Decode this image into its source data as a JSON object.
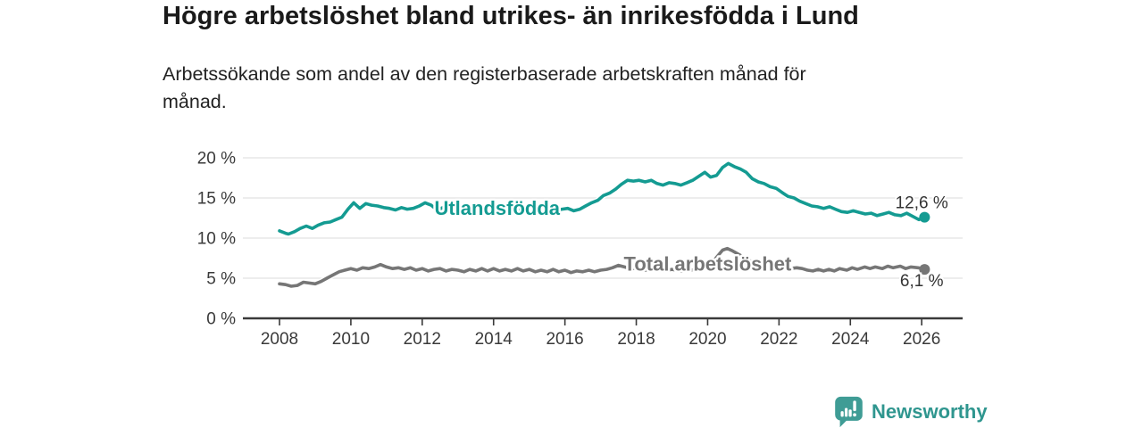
{
  "chart_data": {
    "type": "line",
    "title": "Högre arbetslöshet bland utrikes- än inrikesfödda i Lund",
    "subtitle": "Arbetssökande som andel av den registerbaserade arbetskraften månad för månad.",
    "subtitle_line1": "Arbetssökande som andel av den registerbaserade arbetskraften månad för",
    "subtitle_line2": "månad.",
    "xlabel": "",
    "ylabel": "",
    "xlim": [
      2007.0,
      2027.15
    ],
    "ylim": [
      0,
      20
    ],
    "xticks": [
      2008,
      2010,
      2012,
      2014,
      2016,
      2018,
      2020,
      2022,
      2024,
      2026
    ],
    "yticks": [
      0,
      5,
      10,
      15,
      20
    ],
    "ytick_suffix": " %",
    "grid": true,
    "legend_position": "inline-labels",
    "axis_text_color": "#3a3a3a",
    "grid_color": "#e2e2e2",
    "series": [
      {
        "name": "Utlandsfödda",
        "color": "#149b92",
        "end_value": 12.6,
        "end_label": "12,6 %",
        "label_pos": {
          "x": 2014.1,
          "y": 12.9
        },
        "end_label_pos": {
          "x": 2026.0,
          "y": 13.75
        },
        "points": [
          [
            2008.0,
            10.9
          ],
          [
            2008.17,
            10.6
          ],
          [
            2008.25,
            10.5
          ],
          [
            2008.42,
            10.8
          ],
          [
            2008.58,
            11.2
          ],
          [
            2008.75,
            11.5
          ],
          [
            2008.92,
            11.2
          ],
          [
            2009.08,
            11.6
          ],
          [
            2009.25,
            11.9
          ],
          [
            2009.42,
            12.0
          ],
          [
            2009.58,
            12.3
          ],
          [
            2009.75,
            12.6
          ],
          [
            2009.92,
            13.6
          ],
          [
            2010.08,
            14.4
          ],
          [
            2010.25,
            13.7
          ],
          [
            2010.42,
            14.3
          ],
          [
            2010.58,
            14.1
          ],
          [
            2010.75,
            14.0
          ],
          [
            2010.92,
            13.8
          ],
          [
            2011.08,
            13.7
          ],
          [
            2011.25,
            13.5
          ],
          [
            2011.42,
            13.8
          ],
          [
            2011.58,
            13.6
          ],
          [
            2011.75,
            13.7
          ],
          [
            2011.92,
            14.0
          ],
          [
            2012.08,
            14.4
          ],
          [
            2012.25,
            14.1
          ],
          [
            2012.42,
            13.5
          ],
          [
            2012.58,
            13.8
          ],
          [
            2012.75,
            14.0
          ],
          [
            2012.92,
            13.7
          ],
          [
            2013.08,
            13.9
          ],
          [
            2013.25,
            13.6
          ],
          [
            2013.42,
            13.8
          ],
          [
            2013.58,
            13.5
          ],
          [
            2013.75,
            13.7
          ],
          [
            2013.92,
            13.4
          ],
          [
            2014.08,
            13.7
          ],
          [
            2014.25,
            13.4
          ],
          [
            2014.42,
            13.6
          ],
          [
            2014.58,
            13.3
          ],
          [
            2014.75,
            13.6
          ],
          [
            2014.92,
            13.3
          ],
          [
            2015.08,
            13.6
          ],
          [
            2015.25,
            13.3
          ],
          [
            2015.42,
            13.5
          ],
          [
            2015.58,
            13.2
          ],
          [
            2015.75,
            13.5
          ],
          [
            2015.92,
            13.6
          ],
          [
            2016.08,
            13.7
          ],
          [
            2016.25,
            13.4
          ],
          [
            2016.42,
            13.6
          ],
          [
            2016.58,
            14.0
          ],
          [
            2016.75,
            14.4
          ],
          [
            2016.92,
            14.7
          ],
          [
            2017.08,
            15.3
          ],
          [
            2017.25,
            15.6
          ],
          [
            2017.42,
            16.1
          ],
          [
            2017.58,
            16.7
          ],
          [
            2017.75,
            17.2
          ],
          [
            2017.92,
            17.1
          ],
          [
            2018.08,
            17.2
          ],
          [
            2018.25,
            17.0
          ],
          [
            2018.42,
            17.2
          ],
          [
            2018.58,
            16.8
          ],
          [
            2018.75,
            16.6
          ],
          [
            2018.92,
            16.9
          ],
          [
            2019.08,
            16.8
          ],
          [
            2019.25,
            16.6
          ],
          [
            2019.42,
            16.9
          ],
          [
            2019.58,
            17.2
          ],
          [
            2019.75,
            17.7
          ],
          [
            2019.92,
            18.2
          ],
          [
            2020.08,
            17.6
          ],
          [
            2020.25,
            17.8
          ],
          [
            2020.42,
            18.8
          ],
          [
            2020.58,
            19.3
          ],
          [
            2020.75,
            18.9
          ],
          [
            2020.92,
            18.6
          ],
          [
            2021.08,
            18.2
          ],
          [
            2021.25,
            17.4
          ],
          [
            2021.42,
            17.0
          ],
          [
            2021.58,
            16.8
          ],
          [
            2021.75,
            16.4
          ],
          [
            2021.92,
            16.2
          ],
          [
            2022.08,
            15.7
          ],
          [
            2022.25,
            15.2
          ],
          [
            2022.42,
            15.0
          ],
          [
            2022.58,
            14.6
          ],
          [
            2022.75,
            14.3
          ],
          [
            2022.92,
            14.0
          ],
          [
            2023.08,
            13.9
          ],
          [
            2023.25,
            13.7
          ],
          [
            2023.42,
            13.9
          ],
          [
            2023.58,
            13.6
          ],
          [
            2023.75,
            13.3
          ],
          [
            2023.92,
            13.2
          ],
          [
            2024.08,
            13.4
          ],
          [
            2024.25,
            13.2
          ],
          [
            2024.42,
            13.0
          ],
          [
            2024.58,
            13.1
          ],
          [
            2024.75,
            12.8
          ],
          [
            2024.92,
            13.0
          ],
          [
            2025.08,
            13.2
          ],
          [
            2025.25,
            12.9
          ],
          [
            2025.42,
            12.8
          ],
          [
            2025.58,
            13.1
          ],
          [
            2025.75,
            12.7
          ],
          [
            2025.92,
            12.3
          ],
          [
            2026.08,
            12.6
          ]
        ]
      },
      {
        "name": "Total arbetslöshet",
        "color": "#767676",
        "end_value": 6.1,
        "end_label": "6,1 %",
        "label_pos": {
          "x": 2020.0,
          "y": 5.95
        },
        "end_label_pos": {
          "x": 2026.0,
          "y": 4.0
        },
        "points": [
          [
            2008.0,
            4.3
          ],
          [
            2008.17,
            4.2
          ],
          [
            2008.33,
            4.0
          ],
          [
            2008.5,
            4.1
          ],
          [
            2008.67,
            4.5
          ],
          [
            2008.83,
            4.4
          ],
          [
            2009.0,
            4.3
          ],
          [
            2009.17,
            4.6
          ],
          [
            2009.33,
            5.0
          ],
          [
            2009.5,
            5.4
          ],
          [
            2009.67,
            5.8
          ],
          [
            2009.83,
            6.0
          ],
          [
            2010.0,
            6.2
          ],
          [
            2010.17,
            6.0
          ],
          [
            2010.33,
            6.3
          ],
          [
            2010.5,
            6.2
          ],
          [
            2010.67,
            6.4
          ],
          [
            2010.83,
            6.7
          ],
          [
            2011.0,
            6.4
          ],
          [
            2011.17,
            6.2
          ],
          [
            2011.33,
            6.3
          ],
          [
            2011.5,
            6.1
          ],
          [
            2011.67,
            6.3
          ],
          [
            2011.83,
            6.0
          ],
          [
            2012.0,
            6.2
          ],
          [
            2012.17,
            5.9
          ],
          [
            2012.33,
            6.1
          ],
          [
            2012.5,
            6.2
          ],
          [
            2012.67,
            5.9
          ],
          [
            2012.83,
            6.1
          ],
          [
            2013.0,
            6.0
          ],
          [
            2013.17,
            5.8
          ],
          [
            2013.33,
            6.1
          ],
          [
            2013.5,
            5.9
          ],
          [
            2013.67,
            6.2
          ],
          [
            2013.83,
            5.9
          ],
          [
            2014.0,
            6.2
          ],
          [
            2014.17,
            5.9
          ],
          [
            2014.33,
            6.1
          ],
          [
            2014.5,
            5.9
          ],
          [
            2014.67,
            6.2
          ],
          [
            2014.83,
            5.9
          ],
          [
            2015.0,
            6.1
          ],
          [
            2015.17,
            5.8
          ],
          [
            2015.33,
            6.0
          ],
          [
            2015.5,
            5.8
          ],
          [
            2015.67,
            6.1
          ],
          [
            2015.83,
            5.8
          ],
          [
            2016.0,
            6.0
          ],
          [
            2016.17,
            5.7
          ],
          [
            2016.33,
            5.9
          ],
          [
            2016.5,
            5.8
          ],
          [
            2016.67,
            6.0
          ],
          [
            2016.83,
            5.8
          ],
          [
            2017.0,
            6.0
          ],
          [
            2017.17,
            6.1
          ],
          [
            2017.33,
            6.3
          ],
          [
            2017.5,
            6.6
          ],
          [
            2017.67,
            6.4
          ],
          [
            2017.83,
            6.2
          ],
          [
            2018.0,
            6.2
          ],
          [
            2018.25,
            6.0
          ],
          [
            2018.5,
            6.1
          ],
          [
            2018.75,
            5.9
          ],
          [
            2019.0,
            6.1
          ],
          [
            2019.25,
            5.9
          ],
          [
            2019.5,
            6.0
          ],
          [
            2019.75,
            6.1
          ],
          [
            2019.92,
            6.3
          ],
          [
            2020.08,
            6.6
          ],
          [
            2020.25,
            7.6
          ],
          [
            2020.42,
            8.5
          ],
          [
            2020.55,
            8.7
          ],
          [
            2020.7,
            8.4
          ],
          [
            2020.9,
            7.9
          ],
          [
            2021.1,
            7.3
          ],
          [
            2021.3,
            7.0
          ],
          [
            2021.5,
            6.8
          ],
          [
            2021.7,
            6.6
          ],
          [
            2021.9,
            6.4
          ],
          [
            2022.1,
            6.3
          ],
          [
            2022.3,
            6.2
          ],
          [
            2022.5,
            6.3
          ],
          [
            2022.65,
            6.2
          ],
          [
            2022.8,
            6.0
          ],
          [
            2022.95,
            5.9
          ],
          [
            2023.1,
            6.1
          ],
          [
            2023.25,
            5.9
          ],
          [
            2023.4,
            6.1
          ],
          [
            2023.55,
            5.9
          ],
          [
            2023.7,
            6.2
          ],
          [
            2023.9,
            6.0
          ],
          [
            2024.05,
            6.3
          ],
          [
            2024.2,
            6.1
          ],
          [
            2024.4,
            6.4
          ],
          [
            2024.55,
            6.2
          ],
          [
            2024.7,
            6.4
          ],
          [
            2024.9,
            6.2
          ],
          [
            2025.05,
            6.5
          ],
          [
            2025.2,
            6.3
          ],
          [
            2025.4,
            6.5
          ],
          [
            2025.55,
            6.2
          ],
          [
            2025.7,
            6.4
          ],
          [
            2025.9,
            6.3
          ],
          [
            2026.08,
            6.1
          ]
        ]
      }
    ]
  },
  "footer": {
    "brand": "Newsworthy",
    "brand_color": "#2f968f",
    "logo_icon": "speech-bubble-bar-chart-exclamation"
  }
}
